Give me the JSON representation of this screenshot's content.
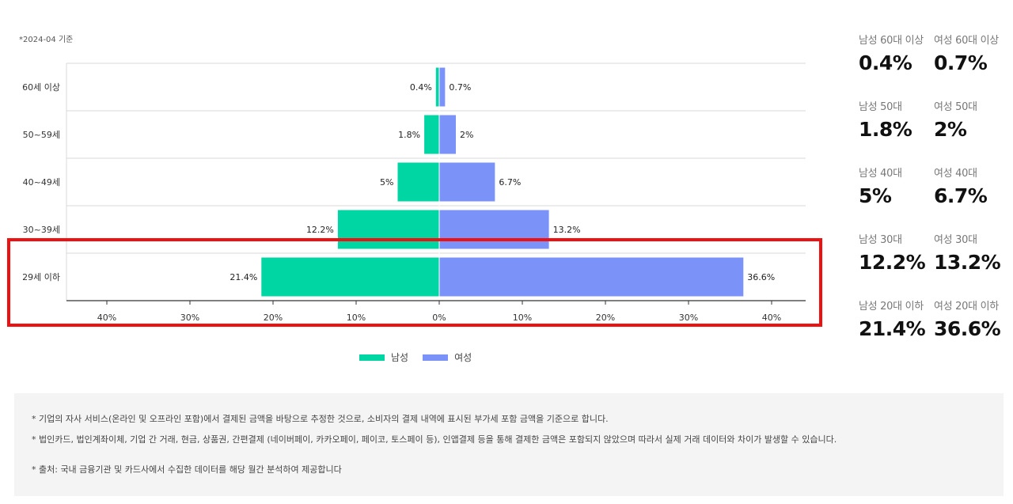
{
  "as_of": "*2024-04 기준",
  "colors": {
    "male": "#00d6a3",
    "female": "#7b93f8",
    "highlight": "#ee1111"
  },
  "legend": {
    "male": "남성",
    "female": "여성"
  },
  "chart_data": {
    "type": "bar",
    "orientation": "horizontal-diverging",
    "categories": [
      "60세 이상",
      "50~59세",
      "40~49세",
      "30~39세",
      "29세 이하"
    ],
    "series": [
      {
        "name": "남성",
        "values": [
          0.4,
          1.8,
          5,
          12.2,
          21.4
        ],
        "labels": [
          "0.4%",
          "1.8%",
          "5%",
          "12.2%",
          "21.4%"
        ]
      },
      {
        "name": "여성",
        "values": [
          0.7,
          2,
          6.7,
          13.2,
          36.6
        ],
        "labels": [
          "0.7%",
          "2%",
          "6.7%",
          "13.2%",
          "36.6%"
        ]
      }
    ],
    "xlim": [
      -45,
      45
    ],
    "xticks": [
      -40,
      -30,
      -20,
      -10,
      0,
      10,
      20,
      30,
      40
    ],
    "xtick_labels": [
      "40%",
      "30%",
      "20%",
      "10%",
      "0%",
      "10%",
      "20%",
      "30%",
      "40%"
    ],
    "grid": "horizontal",
    "legend_position": "bottom-center"
  },
  "stats": [
    {
      "male_label": "남성 60대 이상",
      "male_value": "0.4%",
      "female_label": "여성 60대 이상",
      "female_value": "0.7%"
    },
    {
      "male_label": "남성 50대",
      "male_value": "1.8%",
      "female_label": "여성 50대",
      "female_value": "2%"
    },
    {
      "male_label": "남성 40대",
      "male_value": "5%",
      "female_label": "여성 40대",
      "female_value": "6.7%"
    },
    {
      "male_label": "남성 30대",
      "male_value": "12.2%",
      "female_label": "여성 30대",
      "female_value": "13.2%"
    },
    {
      "male_label": "남성 20대 이하",
      "male_value": "21.4%",
      "female_label": "여성 20대 이하",
      "female_value": "36.6%"
    }
  ],
  "notes": {
    "line1": "* 기업의 자사 서비스(온라인 및 오프라인 포함)에서 결제된 금액을 바탕으로 추정한 것으로, 소비자의 결제 내역에 표시된 부가세 포함 금액을 기준으로 합니다.",
    "line2": "* 법인카드, 법인계좌이체, 기업 간 거래, 현금, 상품권, 간편결제 (네이버페이, 카카오페이, 페이코, 토스페이 등), 인앱결제 등을 통해 결제한 금액은 포함되지 않았으며 따라서 실제 거래 데이터와 차이가 발생할 수 있습니다.",
    "source": "* 출처:  국내 금융기관 및 카드사에서 수집한 데이터를 해당 월간 분석하여 제공합니다"
  }
}
